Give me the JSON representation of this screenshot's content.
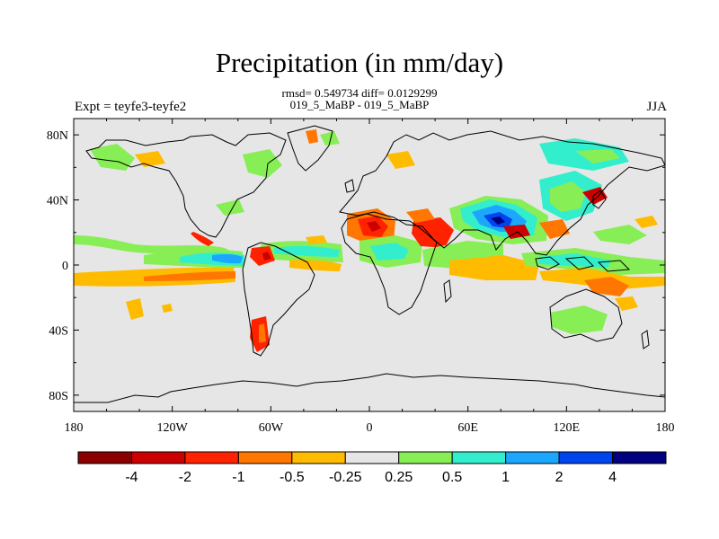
{
  "chart_data": {
    "type": "heatmap",
    "title": "Precipitation (in mm/day)",
    "stats": "rmsd= 0.549734 diff= 0.0129299",
    "subtitle": "019_5_MaBP - 019_5_MaBP",
    "left_label": "Expt = teyfe3-teyfe2",
    "right_label": "JJA",
    "x_range": [
      -180,
      180
    ],
    "y_range": [
      -90,
      90
    ],
    "x_ticks": [
      {
        "value": -180,
        "label": "180"
      },
      {
        "value": -120,
        "label": "120W"
      },
      {
        "value": -60,
        "label": "60W"
      },
      {
        "value": 0,
        "label": "0"
      },
      {
        "value": 60,
        "label": "60E"
      },
      {
        "value": 120,
        "label": "120E"
      },
      {
        "value": 180,
        "label": "180"
      }
    ],
    "y_ticks": [
      {
        "value": 80,
        "label": "80N"
      },
      {
        "value": 40,
        "label": "40N"
      },
      {
        "value": 0,
        "label": "0"
      },
      {
        "value": -40,
        "label": "40S"
      },
      {
        "value": -80,
        "label": "80S"
      }
    ],
    "colorbar": {
      "levels": [
        "-4",
        "-2",
        "-1",
        "-0.5",
        "-0.25",
        "0.25",
        "0.5",
        "1",
        "2",
        "4"
      ],
      "colors": [
        "#8b0000",
        "#cc0000",
        "#ff2200",
        "#ff7700",
        "#ffbb00",
        "#e6e6e6",
        "#88ee55",
        "#33eecc",
        "#1ca7ff",
        "#0044ee",
        "#000080"
      ]
    },
    "features": [
      {
        "region": "equatorial Pacific band",
        "lon": [
          -180,
          -80
        ],
        "lat": [
          -8,
          2
        ],
        "value": "-0.5 to -0.25"
      },
      {
        "region": "eastern Pacific ITCZ",
        "lon": [
          -110,
          -75
        ],
        "lat": [
          2,
          10
        ],
        "value": "0.5 to 2"
      },
      {
        "region": "tropical Atlantic",
        "lon": [
          -55,
          -10
        ],
        "lat": [
          -2,
          8
        ],
        "value": "0.5 to 1"
      },
      {
        "region": "West Africa",
        "lon": [
          -5,
          25
        ],
        "lat": [
          5,
          20
        ],
        "value": "-4 to -1"
      },
      {
        "region": "Indian monsoon",
        "lon": [
          65,
          90
        ],
        "lat": [
          15,
          30
        ],
        "value": "1 to 4"
      },
      {
        "region": "Arabian Sea / Bay of Bengal",
        "lon": [
          40,
          110
        ],
        "lat": [
          8,
          22
        ],
        "value": "-2 to -0.5"
      },
      {
        "region": "western Pacific warm pool",
        "lon": [
          100,
          150
        ],
        "lat": [
          -10,
          5
        ],
        "value": "-0.5 to -0.25"
      }
    ]
  }
}
